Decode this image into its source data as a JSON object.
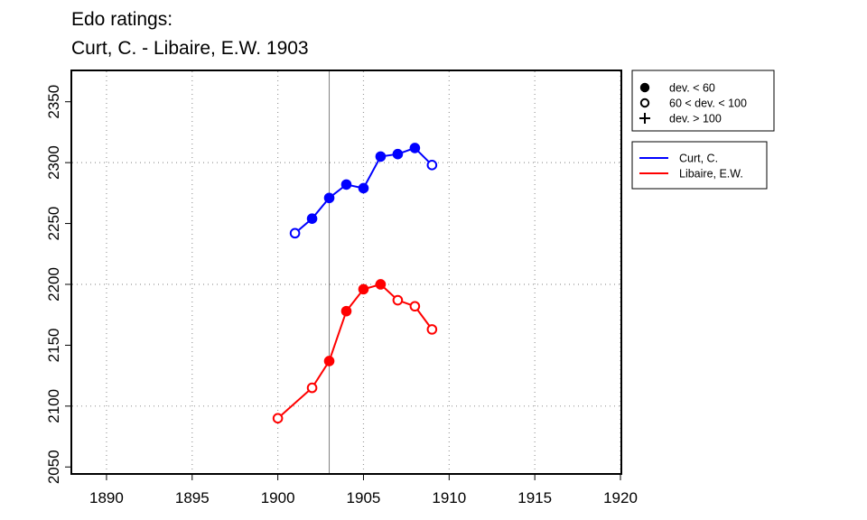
{
  "chart_data": {
    "type": "line",
    "title": "Edo ratings:",
    "subtitle": "Curt, C. - Libaire, E.W. 1903",
    "xlabel": "",
    "ylabel": "",
    "xlim": [
      1888,
      1920
    ],
    "ylim": [
      2045,
      2375
    ],
    "x_ticks": [
      1890,
      1895,
      1900,
      1905,
      1910,
      1915,
      1920
    ],
    "y_ticks": [
      2050,
      2100,
      2150,
      2200,
      2250,
      2300,
      2350
    ],
    "grid": true,
    "reference_line_x": 1903,
    "legend_symbols": [
      {
        "marker": "filled",
        "label": "dev. < 60"
      },
      {
        "marker": "open",
        "label": "60 < dev. < 100"
      },
      {
        "marker": "plus",
        "label": "dev. > 100"
      }
    ],
    "series": [
      {
        "name": "Curt, C.",
        "color": "#0000ff",
        "points": [
          {
            "x": 1901,
            "y": 2242,
            "marker": "open"
          },
          {
            "x": 1902,
            "y": 2254,
            "marker": "filled"
          },
          {
            "x": 1903,
            "y": 2271,
            "marker": "filled"
          },
          {
            "x": 1904,
            "y": 2282,
            "marker": "filled"
          },
          {
            "x": 1905,
            "y": 2279,
            "marker": "filled"
          },
          {
            "x": 1906,
            "y": 2305,
            "marker": "filled"
          },
          {
            "x": 1907,
            "y": 2307,
            "marker": "filled"
          },
          {
            "x": 1908,
            "y": 2312,
            "marker": "filled"
          },
          {
            "x": 1909,
            "y": 2298,
            "marker": "open"
          }
        ]
      },
      {
        "name": "Libaire, E.W.",
        "color": "#ff0000",
        "points": [
          {
            "x": 1900,
            "y": 2090,
            "marker": "open"
          },
          {
            "x": 1902,
            "y": 2115,
            "marker": "open"
          },
          {
            "x": 1903,
            "y": 2137,
            "marker": "filled"
          },
          {
            "x": 1904,
            "y": 2178,
            "marker": "filled"
          },
          {
            "x": 1905,
            "y": 2196,
            "marker": "filled"
          },
          {
            "x": 1906,
            "y": 2200,
            "marker": "filled"
          },
          {
            "x": 1907,
            "y": 2187,
            "marker": "open"
          },
          {
            "x": 1908,
            "y": 2182,
            "marker": "open"
          },
          {
            "x": 1909,
            "y": 2163,
            "marker": "open"
          }
        ]
      }
    ]
  }
}
